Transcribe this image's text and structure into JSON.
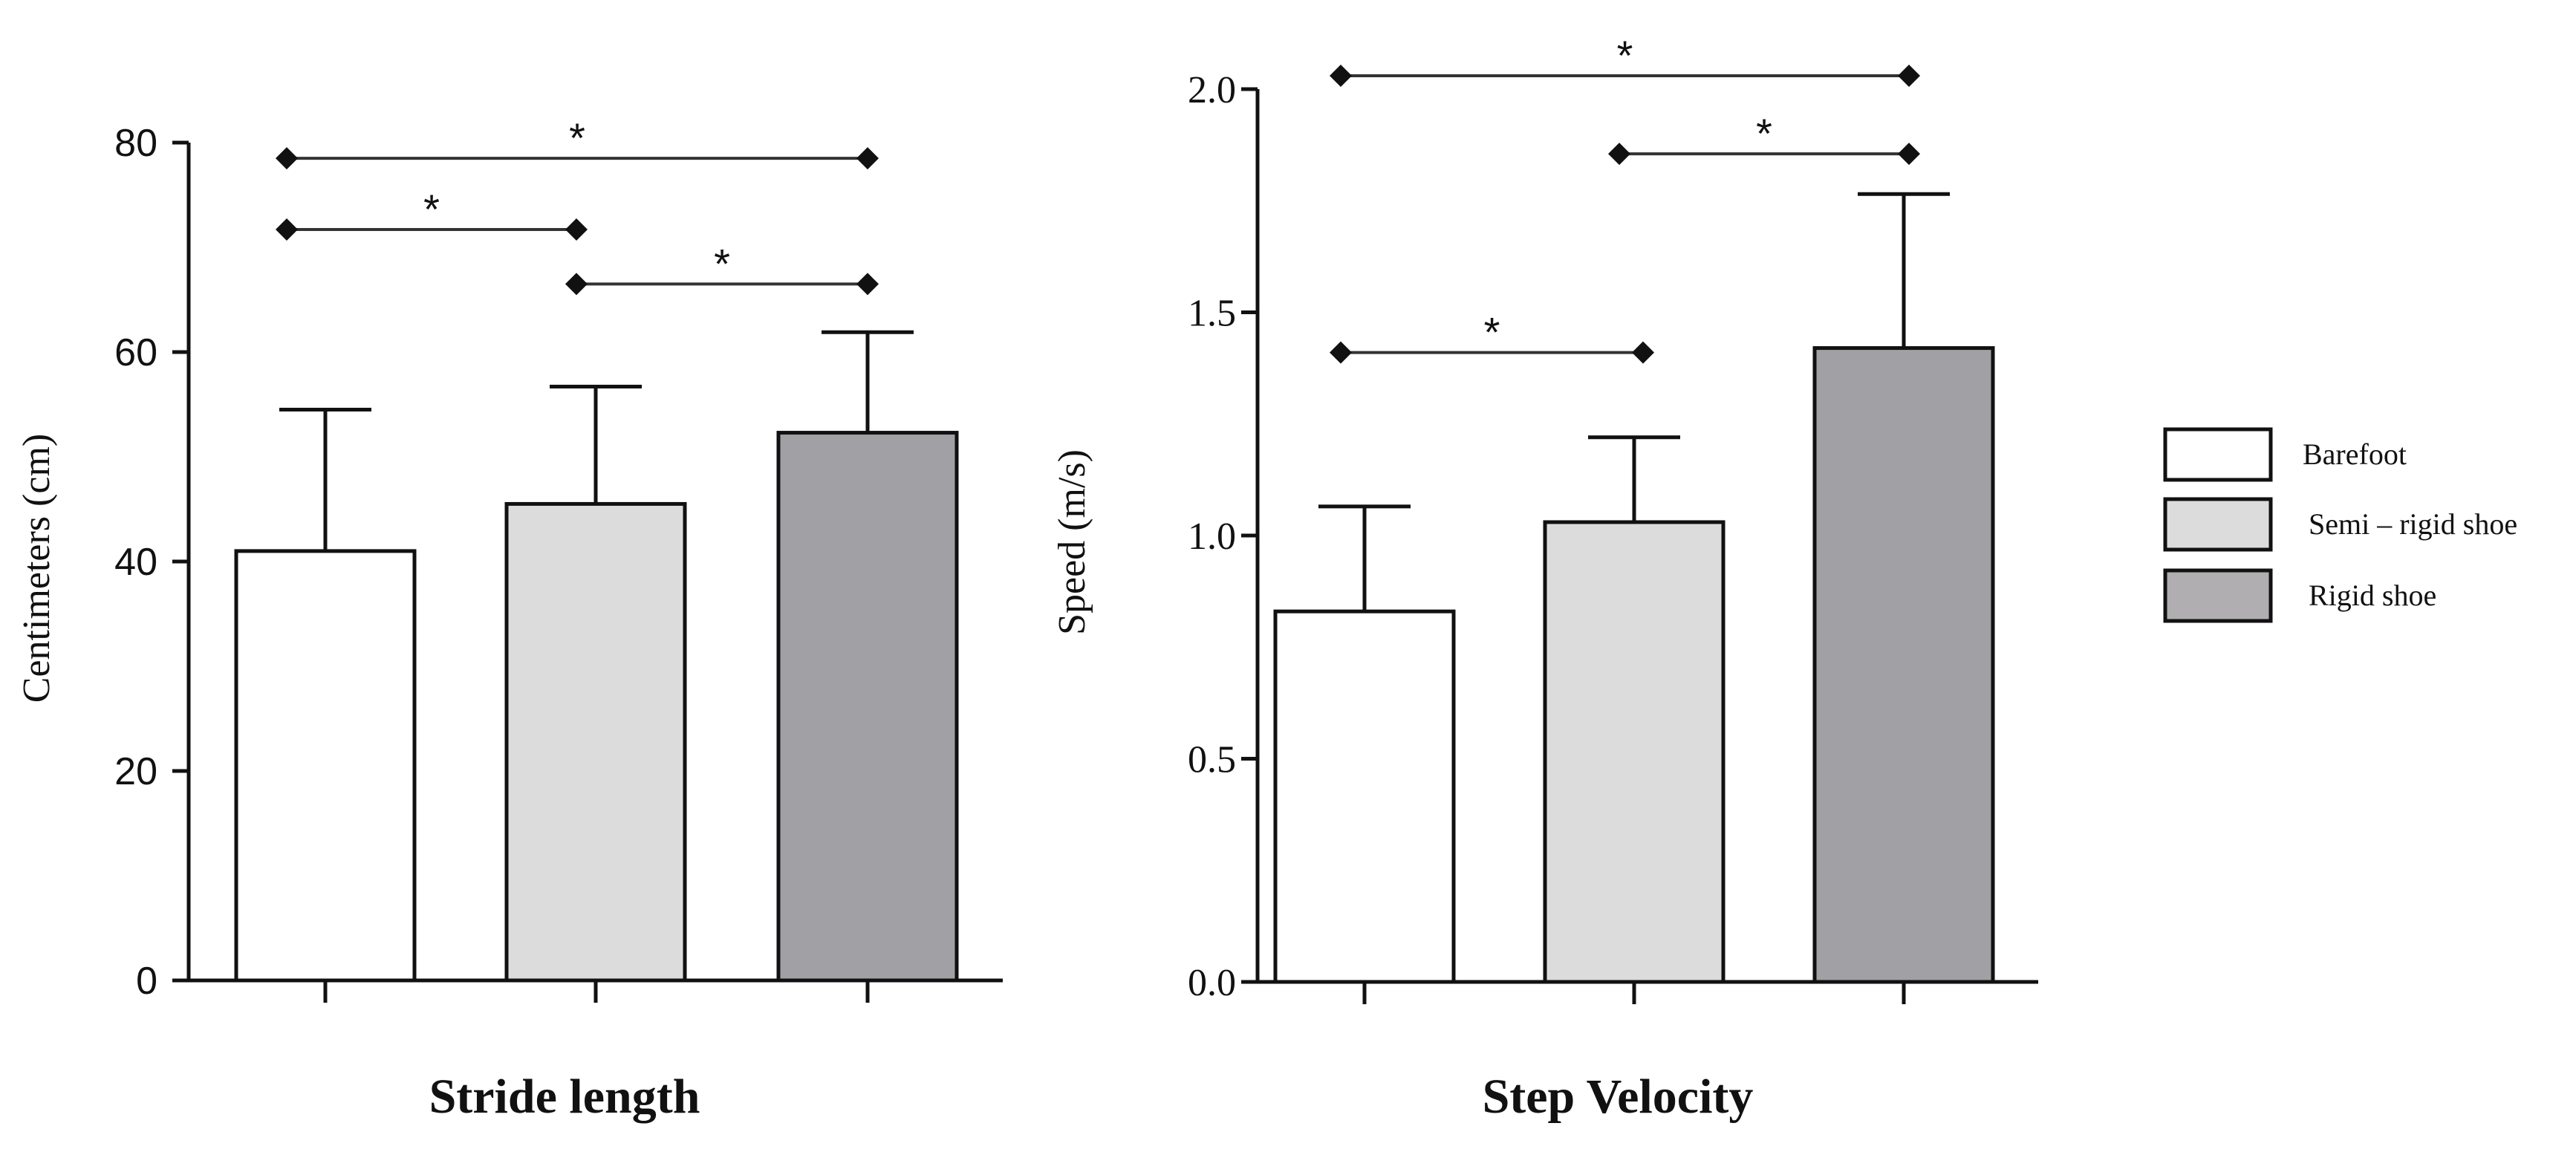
{
  "chart_data": [
    {
      "type": "bar",
      "title": "Stride length",
      "xlabel": "Stride length",
      "ylabel": "Centimeters (cm)",
      "ylim": [
        0,
        80
      ],
      "yticks": [
        "0",
        "20",
        "40",
        "60",
        "80"
      ],
      "categories": [
        "Barefoot",
        "Semi – rigid shoe",
        "Rigid shoe"
      ],
      "values": [
        41,
        45.5,
        52.3
      ],
      "errors": [
        13.5,
        11.2,
        9.6
      ],
      "colors": [
        "#ffffff",
        "#dcdcdc",
        "#a1a0a5"
      ],
      "significance": [
        {
          "from": 0,
          "to": 2,
          "y": 78.5,
          "label": "*"
        },
        {
          "from": 0,
          "to": 1,
          "y": 71.7,
          "label": "*"
        },
        {
          "from": 1,
          "to": 2,
          "y": 66.5,
          "label": "*"
        }
      ]
    },
    {
      "type": "bar",
      "title": "Step Velocity",
      "xlabel": "Step Velocity",
      "ylabel": "Speed (m/s)",
      "ylim": [
        0,
        2.0
      ],
      "yticks": [
        "0.0",
        "0.5",
        "1.0",
        "1.5",
        "2.0"
      ],
      "categories": [
        "Barefoot",
        "Semi – rigid shoe",
        "Rigid shoe"
      ],
      "values": [
        0.83,
        1.03,
        1.42
      ],
      "errors": [
        0.235,
        0.19,
        0.345
      ],
      "colors": [
        "#ffffff",
        "#dcdcdc",
        "#a1a0a5"
      ],
      "significance": [
        {
          "from": 0,
          "to": 2,
          "y": 2.03,
          "label": "*"
        },
        {
          "from": 1,
          "to": 2,
          "y": 1.855,
          "label": "*"
        },
        {
          "from": 0,
          "to": 1,
          "y": 1.41,
          "label": "*"
        }
      ]
    }
  ],
  "legend": [
    {
      "label": "Barefoot",
      "color": "#ffffff"
    },
    {
      "label": "Semi – rigid shoe",
      "color": "#dcdcdc"
    },
    {
      "label": "Rigid shoe",
      "color": "#b0aeb0"
    }
  ]
}
